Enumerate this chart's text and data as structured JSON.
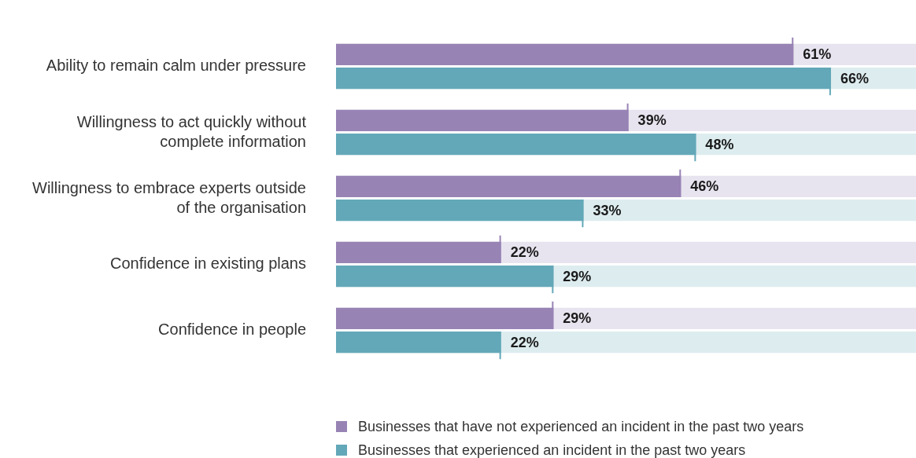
{
  "chart_data": {
    "type": "bar",
    "orientation": "horizontal",
    "tick_labels": "y",
    "legend": "bottom",
    "categories": [
      "Ability to remain calm under pressure",
      "Willingness to act quickly without complete information",
      "Willingness to embrace experts outside of the organisation",
      "Confidence in existing plans",
      "Confidence in people"
    ],
    "series": [
      {
        "name": "Businesses that have not experienced an incident in the past two years",
        "color": "#9883b5",
        "values": [
          61,
          39,
          46,
          22,
          29
        ],
        "value_labels": [
          "61%",
          "39%",
          "46%",
          "22%",
          "29%"
        ]
      },
      {
        "name": "Businesses that experienced an incident in the past two years",
        "color": "#63a8b8",
        "values": [
          66,
          48,
          33,
          29,
          22
        ],
        "value_labels": [
          "66%",
          "48%",
          "33%",
          "29%",
          "22%"
        ]
      }
    ]
  }
}
